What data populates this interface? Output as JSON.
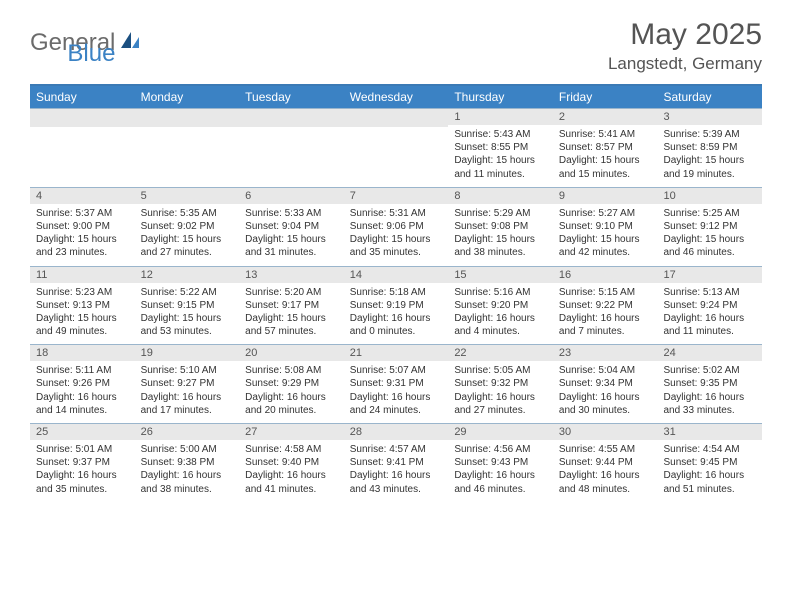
{
  "logo": {
    "general": "General",
    "blue": "Blue"
  },
  "header": {
    "month_title": "May 2025",
    "location": "Langstedt, Germany"
  },
  "colors": {
    "header_bg": "#3b82c4",
    "header_text": "#ffffff",
    "day_number_bg": "#e8e8e8",
    "day_number_text": "#555555",
    "border": "#9ab5cc",
    "body_text": "#333333",
    "title_text": "#545454"
  },
  "day_names": [
    "Sunday",
    "Monday",
    "Tuesday",
    "Wednesday",
    "Thursday",
    "Friday",
    "Saturday"
  ],
  "weeks": [
    [
      {
        "num": "",
        "sunrise": "",
        "sunset": "",
        "daylight": ""
      },
      {
        "num": "",
        "sunrise": "",
        "sunset": "",
        "daylight": ""
      },
      {
        "num": "",
        "sunrise": "",
        "sunset": "",
        "daylight": ""
      },
      {
        "num": "",
        "sunrise": "",
        "sunset": "",
        "daylight": ""
      },
      {
        "num": "1",
        "sunrise": "Sunrise: 5:43 AM",
        "sunset": "Sunset: 8:55 PM",
        "daylight": "Daylight: 15 hours and 11 minutes."
      },
      {
        "num": "2",
        "sunrise": "Sunrise: 5:41 AM",
        "sunset": "Sunset: 8:57 PM",
        "daylight": "Daylight: 15 hours and 15 minutes."
      },
      {
        "num": "3",
        "sunrise": "Sunrise: 5:39 AM",
        "sunset": "Sunset: 8:59 PM",
        "daylight": "Daylight: 15 hours and 19 minutes."
      }
    ],
    [
      {
        "num": "4",
        "sunrise": "Sunrise: 5:37 AM",
        "sunset": "Sunset: 9:00 PM",
        "daylight": "Daylight: 15 hours and 23 minutes."
      },
      {
        "num": "5",
        "sunrise": "Sunrise: 5:35 AM",
        "sunset": "Sunset: 9:02 PM",
        "daylight": "Daylight: 15 hours and 27 minutes."
      },
      {
        "num": "6",
        "sunrise": "Sunrise: 5:33 AM",
        "sunset": "Sunset: 9:04 PM",
        "daylight": "Daylight: 15 hours and 31 minutes."
      },
      {
        "num": "7",
        "sunrise": "Sunrise: 5:31 AM",
        "sunset": "Sunset: 9:06 PM",
        "daylight": "Daylight: 15 hours and 35 minutes."
      },
      {
        "num": "8",
        "sunrise": "Sunrise: 5:29 AM",
        "sunset": "Sunset: 9:08 PM",
        "daylight": "Daylight: 15 hours and 38 minutes."
      },
      {
        "num": "9",
        "sunrise": "Sunrise: 5:27 AM",
        "sunset": "Sunset: 9:10 PM",
        "daylight": "Daylight: 15 hours and 42 minutes."
      },
      {
        "num": "10",
        "sunrise": "Sunrise: 5:25 AM",
        "sunset": "Sunset: 9:12 PM",
        "daylight": "Daylight: 15 hours and 46 minutes."
      }
    ],
    [
      {
        "num": "11",
        "sunrise": "Sunrise: 5:23 AM",
        "sunset": "Sunset: 9:13 PM",
        "daylight": "Daylight: 15 hours and 49 minutes."
      },
      {
        "num": "12",
        "sunrise": "Sunrise: 5:22 AM",
        "sunset": "Sunset: 9:15 PM",
        "daylight": "Daylight: 15 hours and 53 minutes."
      },
      {
        "num": "13",
        "sunrise": "Sunrise: 5:20 AM",
        "sunset": "Sunset: 9:17 PM",
        "daylight": "Daylight: 15 hours and 57 minutes."
      },
      {
        "num": "14",
        "sunrise": "Sunrise: 5:18 AM",
        "sunset": "Sunset: 9:19 PM",
        "daylight": "Daylight: 16 hours and 0 minutes."
      },
      {
        "num": "15",
        "sunrise": "Sunrise: 5:16 AM",
        "sunset": "Sunset: 9:20 PM",
        "daylight": "Daylight: 16 hours and 4 minutes."
      },
      {
        "num": "16",
        "sunrise": "Sunrise: 5:15 AM",
        "sunset": "Sunset: 9:22 PM",
        "daylight": "Daylight: 16 hours and 7 minutes."
      },
      {
        "num": "17",
        "sunrise": "Sunrise: 5:13 AM",
        "sunset": "Sunset: 9:24 PM",
        "daylight": "Daylight: 16 hours and 11 minutes."
      }
    ],
    [
      {
        "num": "18",
        "sunrise": "Sunrise: 5:11 AM",
        "sunset": "Sunset: 9:26 PM",
        "daylight": "Daylight: 16 hours and 14 minutes."
      },
      {
        "num": "19",
        "sunrise": "Sunrise: 5:10 AM",
        "sunset": "Sunset: 9:27 PM",
        "daylight": "Daylight: 16 hours and 17 minutes."
      },
      {
        "num": "20",
        "sunrise": "Sunrise: 5:08 AM",
        "sunset": "Sunset: 9:29 PM",
        "daylight": "Daylight: 16 hours and 20 minutes."
      },
      {
        "num": "21",
        "sunrise": "Sunrise: 5:07 AM",
        "sunset": "Sunset: 9:31 PM",
        "daylight": "Daylight: 16 hours and 24 minutes."
      },
      {
        "num": "22",
        "sunrise": "Sunrise: 5:05 AM",
        "sunset": "Sunset: 9:32 PM",
        "daylight": "Daylight: 16 hours and 27 minutes."
      },
      {
        "num": "23",
        "sunrise": "Sunrise: 5:04 AM",
        "sunset": "Sunset: 9:34 PM",
        "daylight": "Daylight: 16 hours and 30 minutes."
      },
      {
        "num": "24",
        "sunrise": "Sunrise: 5:02 AM",
        "sunset": "Sunset: 9:35 PM",
        "daylight": "Daylight: 16 hours and 33 minutes."
      }
    ],
    [
      {
        "num": "25",
        "sunrise": "Sunrise: 5:01 AM",
        "sunset": "Sunset: 9:37 PM",
        "daylight": "Daylight: 16 hours and 35 minutes."
      },
      {
        "num": "26",
        "sunrise": "Sunrise: 5:00 AM",
        "sunset": "Sunset: 9:38 PM",
        "daylight": "Daylight: 16 hours and 38 minutes."
      },
      {
        "num": "27",
        "sunrise": "Sunrise: 4:58 AM",
        "sunset": "Sunset: 9:40 PM",
        "daylight": "Daylight: 16 hours and 41 minutes."
      },
      {
        "num": "28",
        "sunrise": "Sunrise: 4:57 AM",
        "sunset": "Sunset: 9:41 PM",
        "daylight": "Daylight: 16 hours and 43 minutes."
      },
      {
        "num": "29",
        "sunrise": "Sunrise: 4:56 AM",
        "sunset": "Sunset: 9:43 PM",
        "daylight": "Daylight: 16 hours and 46 minutes."
      },
      {
        "num": "30",
        "sunrise": "Sunrise: 4:55 AM",
        "sunset": "Sunset: 9:44 PM",
        "daylight": "Daylight: 16 hours and 48 minutes."
      },
      {
        "num": "31",
        "sunrise": "Sunrise: 4:54 AM",
        "sunset": "Sunset: 9:45 PM",
        "daylight": "Daylight: 16 hours and 51 minutes."
      }
    ]
  ]
}
